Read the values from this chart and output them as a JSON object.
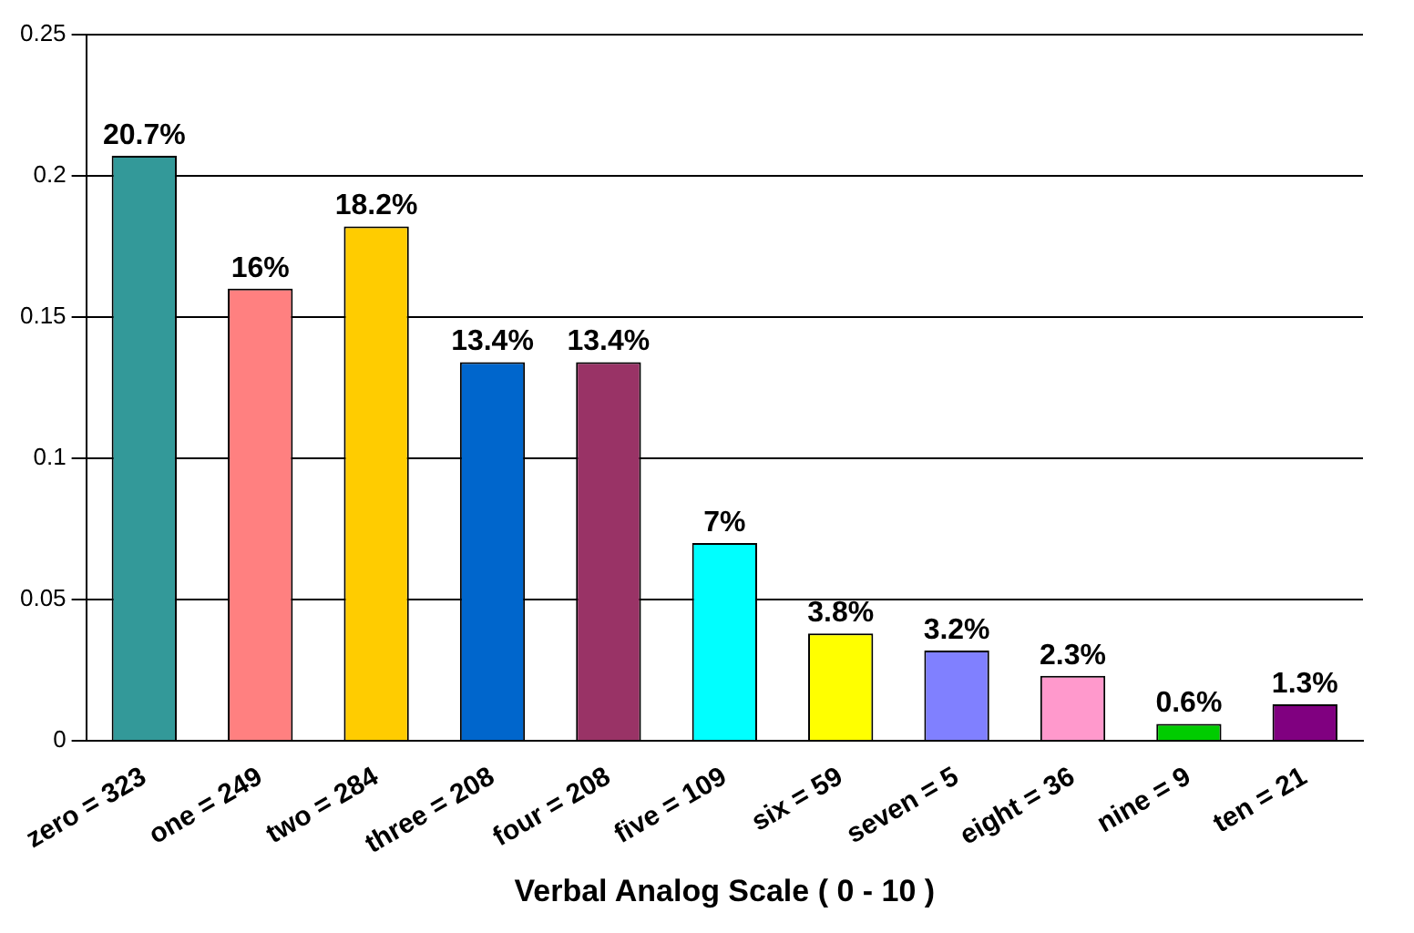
{
  "chart_data": {
    "type": "bar",
    "xlabel": "Verbal Analog Scale ( 0 - 10 )",
    "categories": [
      "zero = 323",
      "one = 249",
      "two = 284",
      "three = 208",
      "four = 208",
      "five = 109",
      "six = 59",
      "seven = 5",
      "eight = 36",
      "nine = 9",
      "ten = 21"
    ],
    "values": [
      0.207,
      0.16,
      0.182,
      0.134,
      0.134,
      0.07,
      0.038,
      0.032,
      0.023,
      0.006,
      0.013
    ],
    "value_labels": [
      "20.7%",
      "16%",
      "18.2%",
      "13.4%",
      "13.4%",
      "7%",
      "3.8%",
      "3.2%",
      "2.3%",
      "0.6%",
      "1.3%"
    ],
    "colors": [
      "#339999",
      "#ff8080",
      "#ffcc00",
      "#0066cc",
      "#993366",
      "#00ffff",
      "#ffff00",
      "#8080ff",
      "#ff99cc",
      "#00cc00",
      "#800080"
    ],
    "ylim": [
      0,
      0.25
    ],
    "yticks": [
      0,
      0.05,
      0.1,
      0.15,
      0.2,
      0.25
    ],
    "grid": "y",
    "legend": false
  }
}
